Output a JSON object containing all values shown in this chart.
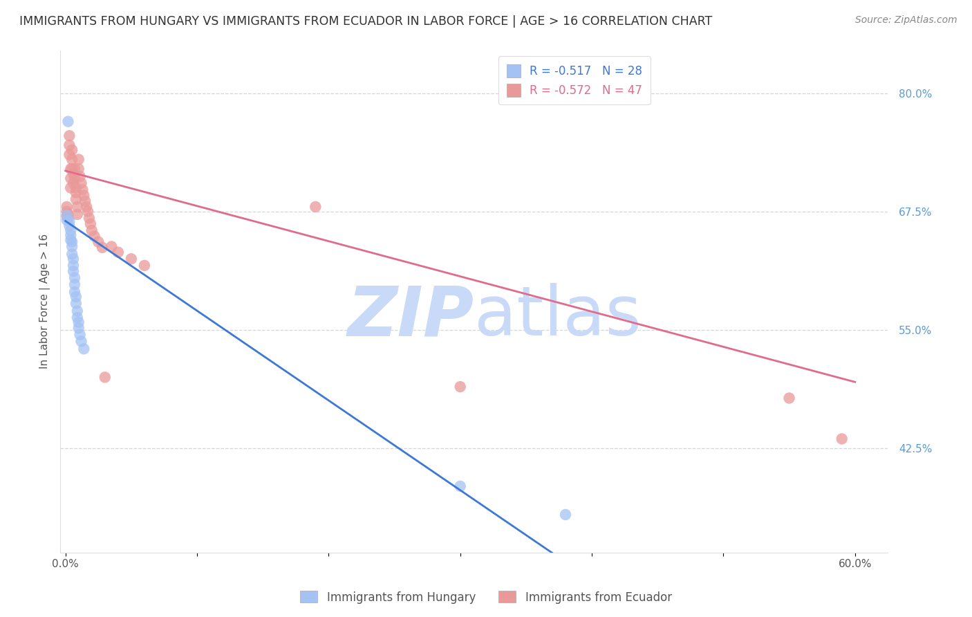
{
  "title": "IMMIGRANTS FROM HUNGARY VS IMMIGRANTS FROM ECUADOR IN LABOR FORCE | AGE > 16 CORRELATION CHART",
  "source_text": "Source: ZipAtlas.com",
  "ylabel": "In Labor Force | Age > 16",
  "ytick_labels": [
    "80.0%",
    "67.5%",
    "55.0%",
    "42.5%"
  ],
  "ytick_values": [
    0.8,
    0.675,
    0.55,
    0.425
  ],
  "ymin": 0.315,
  "ymax": 0.845,
  "xmin": -0.004,
  "xmax": 0.625,
  "hungary_R": -0.517,
  "hungary_N": 28,
  "ecuador_R": -0.572,
  "ecuador_N": 47,
  "hungary_color": "#a4c2f4",
  "ecuador_color": "#ea9999",
  "hungary_line_color": "#3c78d8",
  "ecuador_line_color": "#e06b8b",
  "watermark_zip": "ZIP",
  "watermark_atlas": "atlas",
  "watermark_color": "#c9daf8",
  "background_color": "#ffffff",
  "grid_color": "#cccccc",
  "title_fontsize": 12.5,
  "axis_label_fontsize": 11,
  "tick_fontsize": 11,
  "legend_fontsize": 12,
  "hungary_x": [
    0.001,
    0.001,
    0.002,
    0.003,
    0.003,
    0.004,
    0.004,
    0.004,
    0.005,
    0.005,
    0.005,
    0.006,
    0.006,
    0.006,
    0.007,
    0.007,
    0.007,
    0.008,
    0.008,
    0.009,
    0.009,
    0.01,
    0.01,
    0.011,
    0.012,
    0.014,
    0.3,
    0.38
  ],
  "hungary_y": [
    0.671,
    0.666,
    0.77,
    0.665,
    0.66,
    0.655,
    0.65,
    0.645,
    0.643,
    0.638,
    0.63,
    0.625,
    0.618,
    0.612,
    0.605,
    0.598,
    0.59,
    0.585,
    0.578,
    0.57,
    0.563,
    0.558,
    0.552,
    0.545,
    0.538,
    0.53,
    0.385,
    0.355
  ],
  "ecuador_x": [
    0.001,
    0.001,
    0.001,
    0.002,
    0.002,
    0.003,
    0.003,
    0.003,
    0.004,
    0.004,
    0.004,
    0.005,
    0.005,
    0.005,
    0.006,
    0.006,
    0.007,
    0.007,
    0.008,
    0.008,
    0.008,
    0.009,
    0.009,
    0.01,
    0.01,
    0.011,
    0.012,
    0.013,
    0.014,
    0.015,
    0.016,
    0.017,
    0.018,
    0.019,
    0.02,
    0.022,
    0.025,
    0.028,
    0.03,
    0.035,
    0.04,
    0.05,
    0.06,
    0.19,
    0.3,
    0.55,
    0.59
  ],
  "ecuador_y": [
    0.68,
    0.675,
    0.67,
    0.672,
    0.668,
    0.755,
    0.745,
    0.735,
    0.72,
    0.71,
    0.7,
    0.74,
    0.73,
    0.72,
    0.715,
    0.705,
    0.72,
    0.71,
    0.7,
    0.695,
    0.688,
    0.68,
    0.672,
    0.73,
    0.72,
    0.712,
    0.705,
    0.698,
    0.692,
    0.686,
    0.68,
    0.675,
    0.668,
    0.662,
    0.655,
    0.649,
    0.643,
    0.637,
    0.5,
    0.638,
    0.632,
    0.625,
    0.618,
    0.68,
    0.49,
    0.478,
    0.435
  ],
  "hungary_line_x": [
    0.0,
    0.38
  ],
  "hungary_line_y": [
    0.665,
    0.305
  ],
  "ecuador_line_x": [
    0.0,
    0.6
  ],
  "ecuador_line_y": [
    0.718,
    0.495
  ]
}
